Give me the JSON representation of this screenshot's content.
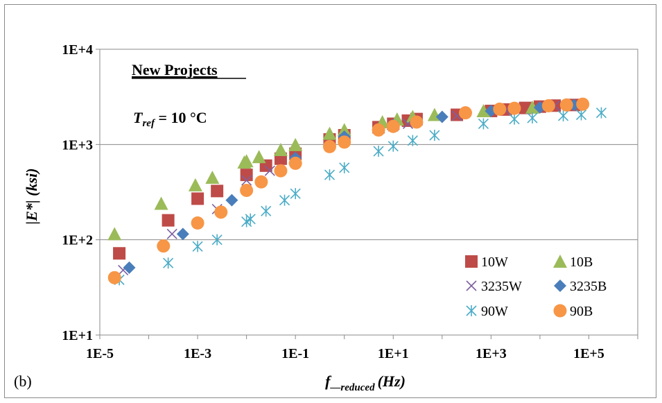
{
  "chart_data": {
    "type": "scatter",
    "x_scale": "log",
    "y_scale": "log",
    "xlabel": {
      "main": "f",
      "sub": "—reduced",
      "unit": "(Hz)"
    },
    "ylabel": "|E*| (ksi)",
    "panel_label": "(b)",
    "annotations": {
      "heading": "New Projects",
      "tref": {
        "main": "T",
        "sub": "ref",
        "rest": " = 10 °C"
      }
    },
    "xlim": [
      1e-05,
      1000000
    ],
    "ylim": [
      10,
      10000
    ],
    "x_ticks": [
      "1E-5",
      "1E-3",
      "1E-1",
      "1E+1",
      "1E+3",
      "1E+5"
    ],
    "y_ticks": [
      "1E+1",
      "1E+2",
      "1E+3",
      "1E+4"
    ],
    "grid": "horizontal major",
    "legend_position": "bottom-right inside plot",
    "series": [
      {
        "name": "10W",
        "marker": "square",
        "color": "#be4b48",
        "points": [
          [
            2.5e-05,
            72
          ],
          [
            0.00025,
            160
          ],
          [
            0.001,
            270
          ],
          [
            0.0025,
            325
          ],
          [
            0.01,
            480
          ],
          [
            0.025,
            600
          ],
          [
            0.05,
            710
          ],
          [
            0.1,
            800
          ],
          [
            0.5,
            1130
          ],
          [
            1,
            1250
          ],
          [
            5,
            1520
          ],
          [
            10,
            1650
          ],
          [
            20,
            1780
          ],
          [
            30,
            1850
          ],
          [
            200,
            2050
          ],
          [
            1000,
            2250
          ],
          [
            2000,
            2330
          ],
          [
            5000,
            2420
          ],
          [
            10000,
            2500
          ],
          [
            20000,
            2560
          ],
          [
            50000,
            2600
          ]
        ]
      },
      {
        "name": "10B",
        "marker": "triangle",
        "color": "#9bbb59",
        "points": [
          [
            2e-05,
            115
          ],
          [
            0.00018,
            240
          ],
          [
            0.0009,
            375
          ],
          [
            0.002,
            450
          ],
          [
            0.009,
            650
          ],
          [
            0.01,
            670
          ],
          [
            0.018,
            740
          ],
          [
            0.05,
            880
          ],
          [
            0.1,
            990
          ],
          [
            0.5,
            1300
          ],
          [
            1,
            1420
          ],
          [
            6,
            1720
          ],
          [
            12,
            1840
          ],
          [
            25,
            1950
          ],
          [
            70,
            2050
          ],
          [
            700,
            2250
          ],
          [
            7000,
            2450
          ]
        ]
      },
      {
        "name": "3235W",
        "marker": "x",
        "color": "#7d60a0",
        "points": [
          [
            3e-05,
            48
          ],
          [
            0.0003,
            115
          ],
          [
            0.0025,
            210
          ],
          [
            0.01,
            420
          ],
          [
            0.03,
            530
          ],
          [
            0.1,
            680
          ],
          [
            1,
            1130
          ],
          [
            10,
            1550
          ],
          [
            20,
            1650
          ],
          [
            200,
            2000
          ],
          [
            2000,
            2300
          ],
          [
            20000,
            2550
          ]
        ]
      },
      {
        "name": "3235B",
        "marker": "diamond",
        "color": "#4a7ebb",
        "points": [
          [
            4e-05,
            51
          ],
          [
            0.0005,
            115
          ],
          [
            0.005,
            260
          ],
          [
            0.1,
            720
          ],
          [
            1,
            1210
          ],
          [
            10,
            1600
          ],
          [
            100,
            1950
          ],
          [
            1000,
            2250
          ],
          [
            10000,
            2450
          ],
          [
            50000,
            2600
          ]
        ]
      },
      {
        "name": "90W",
        "marker": "asterisk",
        "color": "#4bacc6",
        "points": [
          [
            2.5e-05,
            38
          ],
          [
            0.00025,
            57
          ],
          [
            0.001,
            85
          ],
          [
            0.0025,
            100
          ],
          [
            0.01,
            155
          ],
          [
            0.012,
            165
          ],
          [
            0.025,
            200
          ],
          [
            0.06,
            260
          ],
          [
            0.1,
            305
          ],
          [
            0.5,
            480
          ],
          [
            1,
            570
          ],
          [
            5,
            850
          ],
          [
            10,
            960
          ],
          [
            25,
            1100
          ],
          [
            70,
            1250
          ],
          [
            700,
            1650
          ],
          [
            3000,
            1850
          ],
          [
            7000,
            1900
          ],
          [
            30000,
            2000
          ],
          [
            70000,
            2050
          ],
          [
            180000,
            2150
          ]
        ]
      },
      {
        "name": "90B",
        "marker": "circle",
        "color": "#f79646",
        "points": [
          [
            2e-05,
            40
          ],
          [
            0.0002,
            86
          ],
          [
            0.001,
            150
          ],
          [
            0.003,
            195
          ],
          [
            0.01,
            330
          ],
          [
            0.02,
            405
          ],
          [
            0.05,
            530
          ],
          [
            0.1,
            635
          ],
          [
            0.5,
            950
          ],
          [
            1,
            1060
          ],
          [
            5,
            1420
          ],
          [
            10,
            1550
          ],
          [
            30,
            1720
          ],
          [
            300,
            2150
          ],
          [
            1500,
            2350
          ],
          [
            3000,
            2400
          ],
          [
            15000,
            2550
          ],
          [
            35000,
            2600
          ],
          [
            75000,
            2650
          ]
        ]
      }
    ]
  }
}
